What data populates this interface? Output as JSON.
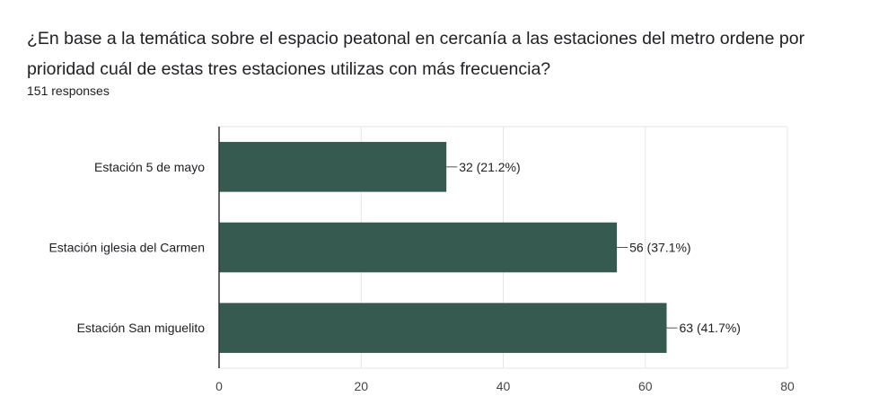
{
  "question": {
    "title": "¿En base a la temática sobre el espacio peatonal en cercanía a las estaciones del metro ordene por prioridad cuál de estas tres estaciones utilizas con más frecuencia?",
    "responses": "151 responses"
  },
  "colors": {
    "bar": "#375a50",
    "grid": "#e6e6e6",
    "axis": "#333333"
  },
  "chart_data": {
    "type": "bar",
    "orientation": "horizontal",
    "title": "¿En base a la temática sobre el espacio peatonal en cercanía a las estaciones del metro ordene por prioridad cuál de estas tres estaciones utilizas con más frecuencia?",
    "subtitle": "151 responses",
    "categories": [
      "Estación 5 de mayo",
      "Estación iglesia del Carmen",
      "Estación San miguelito"
    ],
    "values": [
      32,
      56,
      63
    ],
    "data_labels": [
      "32 (21.2%)",
      "56 (37.1%)",
      "63 (41.7%)"
    ],
    "xticks": [
      0,
      20,
      40,
      60,
      80
    ],
    "xlim": [
      0,
      80
    ],
    "grid": true,
    "legend": "none"
  }
}
